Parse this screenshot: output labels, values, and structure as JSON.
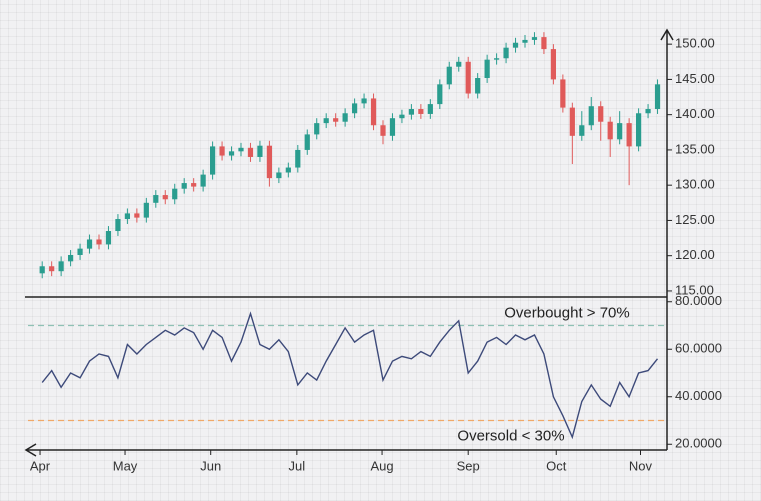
{
  "chart_data": [
    {
      "type": "candlestick",
      "up_color": "#2a9d8f",
      "down_color": "#e05a5a",
      "xlim": [
        -1.5,
        66
      ],
      "ylim": [
        114,
        153
      ],
      "yticks": [
        {
          "value": 115,
          "label": "115.00"
        },
        {
          "value": 120,
          "label": "120.00"
        },
        {
          "value": 125,
          "label": "125.00"
        },
        {
          "value": 130,
          "label": "130.00"
        },
        {
          "value": 135,
          "label": "135.00"
        },
        {
          "value": 140,
          "label": "140.00"
        },
        {
          "value": 145,
          "label": "145.00"
        },
        {
          "value": 150,
          "label": "150.00"
        }
      ],
      "open": [
        117.5,
        118.5,
        117.8,
        119.2,
        120.1,
        121.0,
        122.3,
        121.6,
        123.5,
        125.2,
        126.0,
        125.4,
        127.5,
        128.6,
        128.0,
        129.5,
        130.3,
        129.8,
        131.5,
        135.5,
        134.2,
        134.8,
        135.3,
        134.0,
        135.6,
        131.0,
        131.8,
        132.5,
        135.0,
        137.2,
        138.8,
        139.5,
        139.0,
        140.2,
        141.6,
        142.3,
        138.5,
        137.0,
        139.5,
        140.0,
        140.8,
        140.1,
        141.5,
        144.3,
        146.8,
        147.5,
        143.0,
        145.2,
        147.8,
        148.0,
        149.5,
        150.2,
        150.6,
        151.0,
        149.3,
        145.0,
        141.0,
        137.0,
        138.5,
        141.2,
        139.0,
        136.5,
        138.8,
        135.5,
        140.2,
        140.8
      ],
      "high": [
        119.2,
        119.2,
        119.9,
        120.8,
        121.7,
        123.0,
        123.0,
        124.2,
        125.9,
        126.7,
        126.7,
        128.2,
        129.3,
        129.3,
        130.2,
        131.0,
        131.0,
        132.2,
        136.2,
        136.2,
        135.5,
        136.0,
        136.0,
        136.3,
        136.3,
        132.5,
        133.2,
        135.7,
        137.9,
        139.5,
        140.2,
        140.2,
        140.9,
        142.3,
        143.0,
        143.0,
        139.2,
        140.2,
        140.7,
        141.5,
        141.5,
        142.2,
        145.0,
        147.5,
        148.2,
        148.2,
        145.9,
        148.5,
        148.7,
        150.2,
        150.9,
        151.3,
        151.7,
        151.7,
        150.0,
        145.7,
        141.7,
        140.5,
        142.5,
        141.9,
        139.7,
        140.5,
        139.5,
        140.9,
        141.5,
        145.0
      ],
      "low": [
        116.8,
        117.1,
        117.1,
        118.5,
        119.4,
        120.3,
        120.9,
        120.9,
        122.8,
        124.5,
        124.7,
        124.7,
        126.8,
        127.3,
        127.3,
        128.8,
        129.1,
        129.1,
        130.8,
        133.5,
        133.5,
        134.1,
        133.3,
        133.3,
        129.8,
        130.3,
        131.1,
        131.8,
        134.3,
        136.5,
        138.1,
        138.3,
        138.3,
        139.5,
        140.9,
        137.8,
        135.8,
        136.3,
        138.8,
        139.3,
        139.4,
        139.4,
        140.8,
        143.6,
        146.1,
        142.3,
        142.3,
        144.5,
        147.1,
        147.3,
        148.8,
        149.5,
        149.9,
        148.6,
        144.3,
        140.3,
        133.0,
        136.3,
        137.8,
        136.3,
        134.0,
        135.8,
        130.0,
        134.8,
        139.5,
        140.1
      ],
      "close": [
        118.5,
        117.8,
        119.2,
        120.1,
        121.0,
        122.3,
        121.6,
        123.5,
        125.2,
        126.0,
        125.4,
        127.5,
        128.6,
        128.0,
        129.5,
        130.3,
        129.8,
        131.5,
        135.5,
        134.2,
        134.8,
        135.3,
        134.0,
        135.6,
        131.0,
        131.8,
        132.5,
        135.0,
        137.2,
        138.8,
        139.5,
        139.0,
        140.2,
        141.6,
        142.3,
        138.5,
        137.0,
        139.5,
        140.0,
        140.8,
        140.1,
        141.5,
        144.3,
        146.8,
        147.5,
        143.0,
        145.2,
        147.8,
        148.0,
        149.5,
        150.2,
        150.6,
        151.0,
        149.3,
        145.0,
        141.0,
        137.0,
        138.5,
        141.2,
        139.0,
        136.5,
        138.8,
        135.5,
        140.2,
        140.8,
        144.3
      ]
    },
    {
      "type": "line",
      "color": "#3d4a7a",
      "xlim": [
        -1.5,
        66
      ],
      "ylim": [
        18,
        82
      ],
      "yticks": [
        {
          "value": 20,
          "label": "20.0000"
        },
        {
          "value": 40,
          "label": "40.0000"
        },
        {
          "value": 60,
          "label": "60.0000"
        },
        {
          "value": 80,
          "label": "80.0000"
        }
      ],
      "xticks": [
        {
          "value": -0.23,
          "label": "Apr"
        },
        {
          "value": 8.75,
          "label": "May"
        },
        {
          "value": 17.8,
          "label": "Jun"
        },
        {
          "value": 26.9,
          "label": "Jul"
        },
        {
          "value": 35.9,
          "label": "Aug"
        },
        {
          "value": 45,
          "label": "Sep"
        },
        {
          "value": 54.3,
          "label": "Oct"
        },
        {
          "value": 63.2,
          "label": "Nov"
        }
      ],
      "hlines": [
        {
          "value": 70,
          "label": "Overbought > 70%",
          "color": "#8fc1b5"
        },
        {
          "value": 30,
          "label": "Oversold < 30%",
          "color": "#f0a868"
        }
      ],
      "values": [
        46,
        51,
        44,
        50,
        48,
        55,
        58,
        57,
        48,
        62,
        58,
        62,
        65,
        68,
        66,
        69,
        67,
        60,
        68,
        65,
        55,
        63,
        75,
        62,
        60,
        64,
        59,
        45,
        50,
        47,
        55,
        62,
        69,
        63,
        66,
        68,
        47,
        55,
        57,
        56,
        59,
        57,
        63,
        68,
        72,
        50,
        55,
        63,
        65,
        62,
        66,
        64,
        66,
        58,
        40,
        32,
        23,
        38,
        45,
        39,
        36,
        46,
        40,
        50,
        51,
        56
      ]
    }
  ]
}
